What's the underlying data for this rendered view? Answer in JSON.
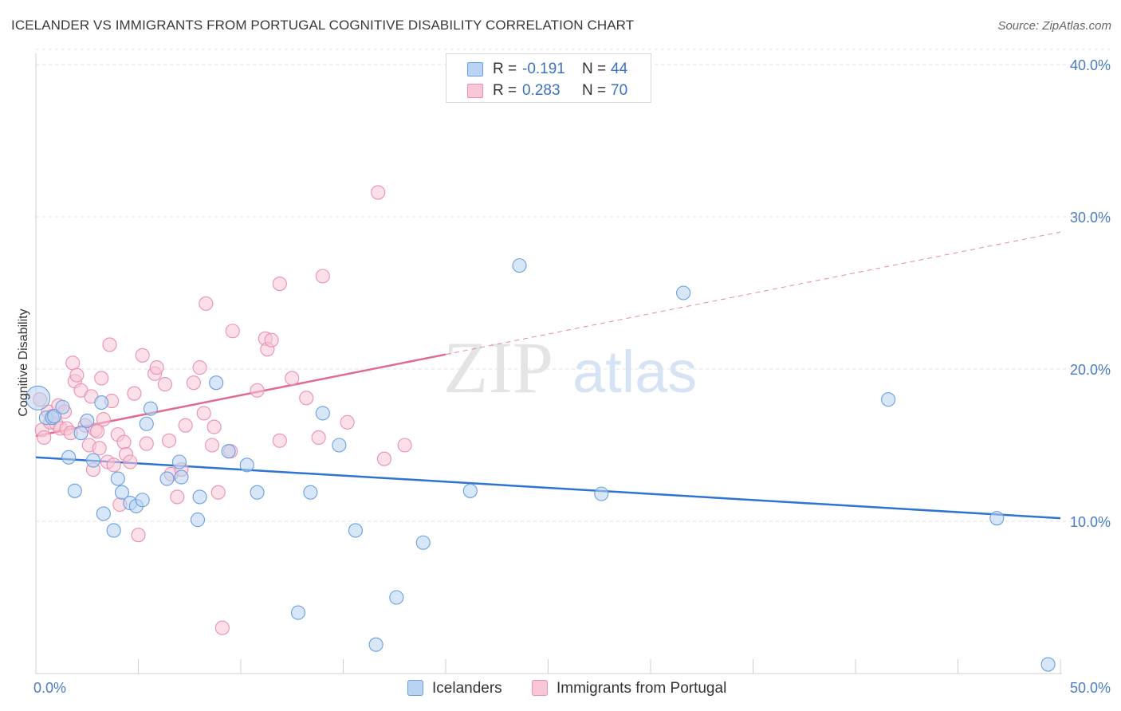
{
  "title": "ICELANDER VS IMMIGRANTS FROM PORTUGAL COGNITIVE DISABILITY CORRELATION CHART",
  "source": "Source: ZipAtlas.com",
  "watermark": {
    "zip": "ZIP",
    "atlas": "atlas"
  },
  "colors": {
    "blue_fill": "#b8d3f3",
    "blue_stroke": "#6a9fe0",
    "blue_line": "#2f74d0",
    "pink_fill": "#f8c6d6",
    "pink_stroke": "#ec8faf",
    "pink_line": "#e06a92",
    "tick_text": "#4a7cc4",
    "grid": "#e2e2e2"
  },
  "legend": {
    "rows": [
      {
        "r_label": "R =",
        "r_value": "-0.191",
        "n_label": "N =",
        "n_value": "44"
      },
      {
        "r_label": "R =",
        "r_value": "0.283",
        "n_label": "N =",
        "n_value": "70"
      }
    ]
  },
  "chart_data": {
    "type": "scatter",
    "title": "ICELANDER VS IMMIGRANTS FROM PORTUGAL COGNITIVE DISABILITY CORRELATION CHART",
    "xlabel": "",
    "ylabel": "Cognitive Disability",
    "xlim": [
      0,
      50
    ],
    "ylim": [
      0,
      41
    ],
    "x_tick_labels": [
      "0.0%",
      "50.0%"
    ],
    "y_ticks": [
      10,
      20,
      30,
      40
    ],
    "y_tick_labels": [
      "10.0%",
      "20.0%",
      "30.0%",
      "40.0%"
    ],
    "grid": true,
    "legend_position": "top-center",
    "series": [
      {
        "name": "Icelanders",
        "r": -0.191,
        "n": 44,
        "trend": {
          "x0": 0,
          "y0": 14.2,
          "x1": 50,
          "y1": 10.2
        },
        "points": [
          [
            0.1,
            18.1
          ],
          [
            0.5,
            16.8
          ],
          [
            0.8,
            16.8
          ],
          [
            0.9,
            16.9
          ],
          [
            1.3,
            17.5
          ],
          [
            1.6,
            14.2
          ],
          [
            1.9,
            12.0
          ],
          [
            2.2,
            15.8
          ],
          [
            2.5,
            16.6
          ],
          [
            2.8,
            14.0
          ],
          [
            3.2,
            17.8
          ],
          [
            3.3,
            10.5
          ],
          [
            3.8,
            9.4
          ],
          [
            4.0,
            12.8
          ],
          [
            4.2,
            11.9
          ],
          [
            4.6,
            11.2
          ],
          [
            4.9,
            11.0
          ],
          [
            5.2,
            11.4
          ],
          [
            5.4,
            16.4
          ],
          [
            5.6,
            17.4
          ],
          [
            6.4,
            12.8
          ],
          [
            7.0,
            13.9
          ],
          [
            7.1,
            12.9
          ],
          [
            7.9,
            10.1
          ],
          [
            8.0,
            11.6
          ],
          [
            8.8,
            19.1
          ],
          [
            9.4,
            14.6
          ],
          [
            10.3,
            13.7
          ],
          [
            10.8,
            11.9
          ],
          [
            12.8,
            4.0
          ],
          [
            13.4,
            11.9
          ],
          [
            14.0,
            17.1
          ],
          [
            14.8,
            15.0
          ],
          [
            15.6,
            9.4
          ],
          [
            16.6,
            1.9
          ],
          [
            17.6,
            5.0
          ],
          [
            18.9,
            8.6
          ],
          [
            21.2,
            12.0
          ],
          [
            23.6,
            26.8
          ],
          [
            27.6,
            11.8
          ],
          [
            31.6,
            25.0
          ],
          [
            41.6,
            18.0
          ],
          [
            46.9,
            10.2
          ],
          [
            49.4,
            0.6
          ]
        ]
      },
      {
        "name": "Immigrants from Portugal",
        "r": 0.283,
        "n": 70,
        "trend": {
          "x0": 0,
          "y0": 15.6,
          "x1": 50,
          "y1": 29.0,
          "solid_until_x": 20
        },
        "points": [
          [
            0.2,
            18.0
          ],
          [
            0.3,
            16.0
          ],
          [
            0.4,
            15.5
          ],
          [
            0.6,
            17.2
          ],
          [
            0.7,
            16.5
          ],
          [
            0.8,
            16.9
          ],
          [
            1.0,
            16.4
          ],
          [
            1.1,
            17.6
          ],
          [
            1.2,
            16.1
          ],
          [
            1.4,
            17.2
          ],
          [
            1.5,
            16.1
          ],
          [
            1.7,
            15.8
          ],
          [
            1.8,
            20.4
          ],
          [
            1.9,
            19.2
          ],
          [
            2.0,
            19.6
          ],
          [
            2.2,
            18.6
          ],
          [
            2.4,
            16.3
          ],
          [
            2.6,
            15.0
          ],
          [
            2.7,
            18.2
          ],
          [
            2.8,
            13.4
          ],
          [
            2.9,
            16.0
          ],
          [
            3.0,
            15.9
          ],
          [
            3.1,
            14.8
          ],
          [
            3.2,
            19.4
          ],
          [
            3.3,
            16.7
          ],
          [
            3.5,
            13.9
          ],
          [
            3.6,
            21.6
          ],
          [
            3.7,
            17.9
          ],
          [
            3.8,
            13.7
          ],
          [
            4.0,
            15.7
          ],
          [
            4.1,
            11.1
          ],
          [
            4.3,
            15.2
          ],
          [
            4.4,
            14.4
          ],
          [
            4.6,
            13.9
          ],
          [
            4.8,
            18.4
          ],
          [
            5.0,
            9.1
          ],
          [
            5.2,
            20.9
          ],
          [
            5.4,
            15.1
          ],
          [
            5.8,
            19.7
          ],
          [
            5.9,
            20.1
          ],
          [
            6.3,
            19.0
          ],
          [
            6.5,
            15.3
          ],
          [
            6.6,
            13.1
          ],
          [
            6.9,
            11.6
          ],
          [
            7.1,
            13.4
          ],
          [
            7.3,
            16.3
          ],
          [
            7.7,
            19.1
          ],
          [
            8.0,
            20.1
          ],
          [
            8.2,
            17.1
          ],
          [
            8.3,
            24.3
          ],
          [
            8.6,
            15.0
          ],
          [
            8.7,
            16.2
          ],
          [
            8.9,
            11.9
          ],
          [
            9.1,
            3.0
          ],
          [
            9.5,
            14.6
          ],
          [
            9.6,
            22.5
          ],
          [
            10.8,
            18.6
          ],
          [
            11.2,
            22.0
          ],
          [
            11.3,
            21.3
          ],
          [
            11.5,
            21.9
          ],
          [
            11.9,
            15.3
          ],
          [
            11.9,
            25.6
          ],
          [
            12.5,
            19.4
          ],
          [
            13.2,
            18.1
          ],
          [
            13.8,
            15.5
          ],
          [
            14.0,
            26.1
          ],
          [
            16.7,
            31.6
          ],
          [
            17.0,
            14.1
          ],
          [
            18.0,
            15.0
          ],
          [
            15.2,
            16.5
          ]
        ]
      }
    ]
  }
}
